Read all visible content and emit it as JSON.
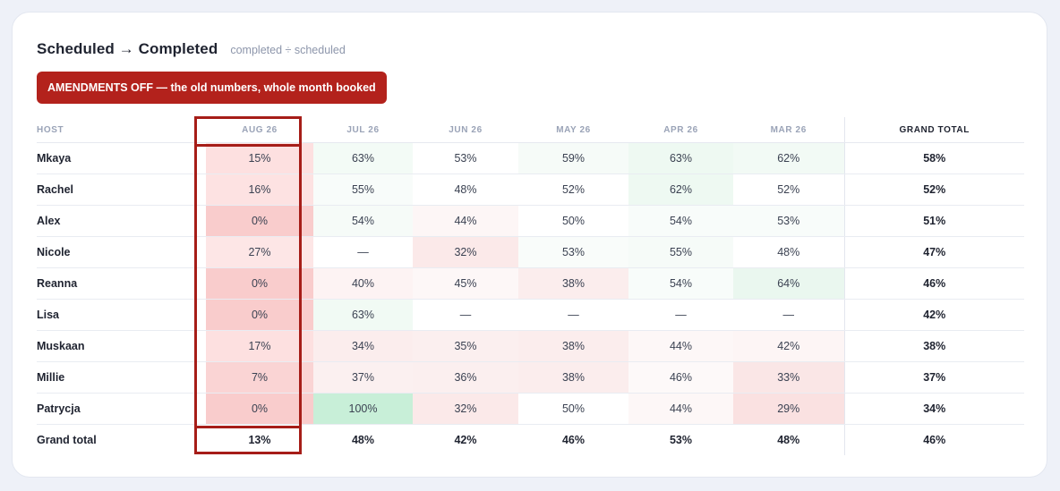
{
  "header": {
    "title": "Scheduled → Completed",
    "subtitle": "completed ÷ scheduled"
  },
  "banner": {
    "text": "AMENDMENTS OFF — the old numbers, whole month booked"
  },
  "columns": {
    "host": "HOST",
    "months": [
      "AUG 26",
      "JUL 26",
      "JUN 26",
      "MAY 26",
      "APR 26",
      "MAR 26"
    ],
    "total": "GRAND TOTAL"
  },
  "rows": [
    {
      "host": "Mkaya",
      "values": [
        "15%",
        "63%",
        "53%",
        "59%",
        "63%",
        "62%"
      ],
      "total": "58%"
    },
    {
      "host": "Rachel",
      "values": [
        "16%",
        "55%",
        "48%",
        "52%",
        "62%",
        "52%"
      ],
      "total": "52%"
    },
    {
      "host": "Alex",
      "values": [
        "0%",
        "54%",
        "44%",
        "50%",
        "54%",
        "53%"
      ],
      "total": "51%"
    },
    {
      "host": "Nicole",
      "values": [
        "27%",
        "—",
        "32%",
        "53%",
        "55%",
        "48%"
      ],
      "total": "47%"
    },
    {
      "host": "Reanna",
      "values": [
        "0%",
        "40%",
        "45%",
        "38%",
        "54%",
        "64%"
      ],
      "total": "46%"
    },
    {
      "host": "Lisa",
      "values": [
        "0%",
        "63%",
        "—",
        "—",
        "—",
        "—"
      ],
      "total": "42%"
    },
    {
      "host": "Muskaan",
      "values": [
        "17%",
        "34%",
        "35%",
        "38%",
        "44%",
        "42%"
      ],
      "total": "38%"
    },
    {
      "host": "Millie",
      "values": [
        "7%",
        "37%",
        "36%",
        "38%",
        "46%",
        "33%"
      ],
      "total": "37%"
    },
    {
      "host": "Patrycja",
      "values": [
        "0%",
        "100%",
        "32%",
        "50%",
        "44%",
        "29%"
      ],
      "total": "34%"
    }
  ],
  "grand_total": {
    "label": "Grand total",
    "values": [
      "13%",
      "48%",
      "42%",
      "46%",
      "53%",
      "48%"
    ],
    "total": "46%"
  },
  "colors": {
    "accent_red": "#b3221c",
    "highlight_border": "#a61d18"
  }
}
